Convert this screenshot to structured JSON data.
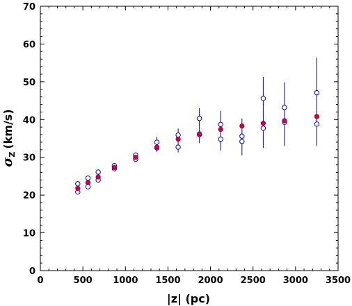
{
  "chart_data": {
    "type": "scatter",
    "xlabel": "|z| (pc)",
    "ylabel_symbol": "σ",
    "ylabel_subscript": "Z",
    "ylabel_units": "(km/s)",
    "xlim": [
      0,
      3500
    ],
    "ylim": [
      0,
      70
    ],
    "x_ticks": [
      0,
      500,
      1000,
      1500,
      2000,
      2500,
      3000,
      3500
    ],
    "y_ticks": [
      0,
      10,
      20,
      30,
      40,
      50,
      60,
      70
    ],
    "x_minor_step": 100,
    "y_minor_step": 2,
    "grid": false,
    "series": [
      {
        "marker": "filled-circle",
        "color": "#cc0044",
        "points": [
          {
            "x": 440,
            "y": 21.8
          },
          {
            "x": 560,
            "y": 23.3
          },
          {
            "x": 680,
            "y": 24.8
          },
          {
            "x": 870,
            "y": 27.3
          },
          {
            "x": 1120,
            "y": 30.0
          },
          {
            "x": 1370,
            "y": 32.7
          },
          {
            "x": 1620,
            "y": 34.8
          },
          {
            "x": 1870,
            "y": 36.2
          },
          {
            "x": 2120,
            "y": 37.4
          },
          {
            "x": 2370,
            "y": 38.3
          },
          {
            "x": 2620,
            "y": 39.0
          },
          {
            "x": 2870,
            "y": 39.7
          },
          {
            "x": 3250,
            "y": 40.8
          }
        ]
      },
      {
        "marker": "open-circle",
        "color": "#0000cc",
        "points": [
          {
            "x": 440,
            "y": 23.0
          },
          {
            "x": 440,
            "y": 20.8
          },
          {
            "x": 560,
            "y": 24.5
          },
          {
            "x": 560,
            "y": 22.2
          },
          {
            "x": 680,
            "y": 26.1
          },
          {
            "x": 680,
            "y": 24.0
          },
          {
            "x": 870,
            "y": 27.8
          },
          {
            "x": 870,
            "y": 27.0
          },
          {
            "x": 1120,
            "y": 30.6
          },
          {
            "x": 1120,
            "y": 29.5
          },
          {
            "x": 1370,
            "y": 34.0
          },
          {
            "x": 1370,
            "y": 32.5
          },
          {
            "x": 1620,
            "y": 35.9
          },
          {
            "x": 1620,
            "y": 32.7
          },
          {
            "x": 1870,
            "y": 40.3
          },
          {
            "x": 1870,
            "y": 36.0
          },
          {
            "x": 2120,
            "y": 38.7
          },
          {
            "x": 2120,
            "y": 34.8
          },
          {
            "x": 2370,
            "y": 35.6
          },
          {
            "x": 2370,
            "y": 34.2
          },
          {
            "x": 2620,
            "y": 45.6
          },
          {
            "x": 2620,
            "y": 37.7
          },
          {
            "x": 2870,
            "y": 43.2
          },
          {
            "x": 2870,
            "y": 39.3
          },
          {
            "x": 3250,
            "y": 47.1
          },
          {
            "x": 3250,
            "y": 38.8
          }
        ]
      }
    ],
    "error_bars": {
      "color": "#0000aa",
      "bars": [
        {
          "x": 440,
          "low": 20.8,
          "high": 23.0
        },
        {
          "x": 560,
          "low": 22.2,
          "high": 24.5
        },
        {
          "x": 680,
          "low": 24.0,
          "high": 26.1
        },
        {
          "x": 870,
          "low": 27.0,
          "high": 27.8
        },
        {
          "x": 1120,
          "low": 29.5,
          "high": 30.6
        },
        {
          "x": 1370,
          "low": 31.5,
          "high": 35.4
        },
        {
          "x": 1620,
          "low": 31.3,
          "high": 37.6
        },
        {
          "x": 1870,
          "low": 33.8,
          "high": 43.0
        },
        {
          "x": 2120,
          "low": 31.8,
          "high": 42.3
        },
        {
          "x": 2370,
          "low": 30.5,
          "high": 40.3
        },
        {
          "x": 2620,
          "low": 32.5,
          "high": 51.3
        },
        {
          "x": 2870,
          "low": 33.0,
          "high": 49.9
        },
        {
          "x": 3250,
          "low": 33.0,
          "high": 56.4
        }
      ]
    }
  }
}
